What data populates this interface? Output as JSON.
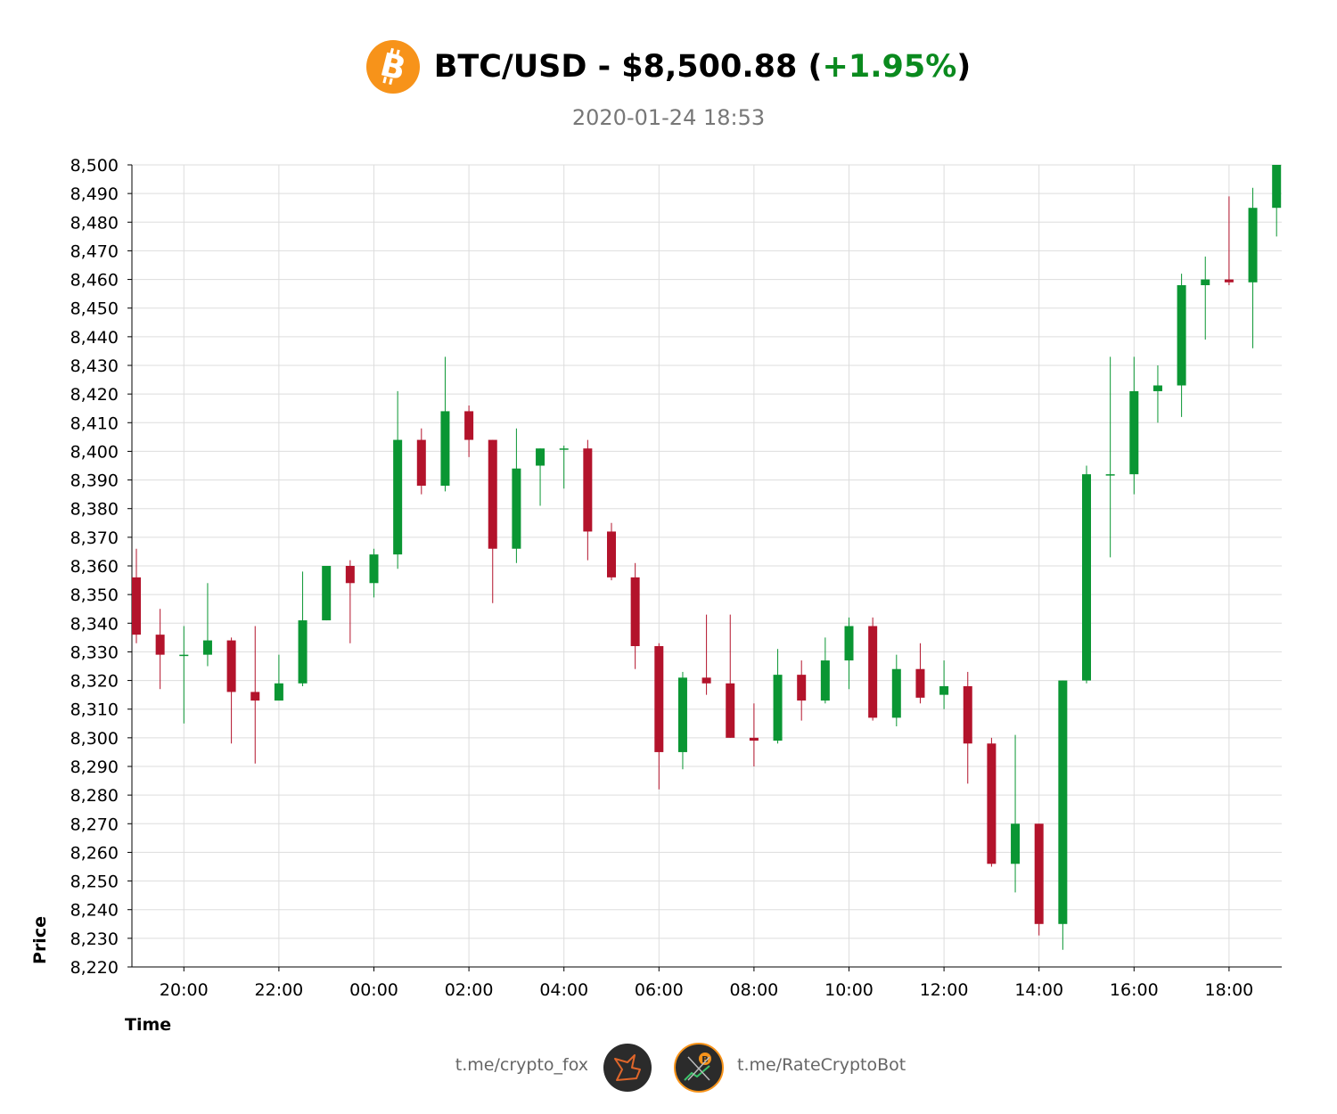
{
  "header": {
    "pair": "BTC/USD - $8,500.88 (",
    "change": "+1.95%",
    "close_paren": ")",
    "timestamp": "2020-01-24 18:53",
    "icon": "bitcoin-icon"
  },
  "colors": {
    "up": "#0a9633",
    "down": "#b3132b",
    "change_text": "#0a8a1e",
    "bitcoin_orange": "#f7931a",
    "grid": "#dddddd"
  },
  "footer": {
    "left_link": "t.me/crypto_fox",
    "right_link": "t.me/RateCryptoBot",
    "left_avatar_icon": "fox-logo-icon",
    "right_avatar_icon": "rate-crypto-bot-logo-icon"
  },
  "chart_data": {
    "type": "candlestick",
    "xlabel": "Time",
    "ylabel": "Price",
    "ylim": [
      8220,
      8500
    ],
    "y_ticks": [
      "8,220",
      "8,230",
      "8,240",
      "8,250",
      "8,260",
      "8,270",
      "8,280",
      "8,290",
      "8,300",
      "8,310",
      "8,320",
      "8,330",
      "8,340",
      "8,350",
      "8,360",
      "8,370",
      "8,380",
      "8,390",
      "8,400",
      "8,410",
      "8,420",
      "8,430",
      "8,440",
      "8,450",
      "8,460",
      "8,470",
      "8,480",
      "8,490",
      "8,500"
    ],
    "x_ticks": [
      "20:00",
      "22:00",
      "00:00",
      "02:00",
      "04:00",
      "06:00",
      "08:00",
      "10:00",
      "12:00",
      "14:00",
      "16:00",
      "18:00"
    ],
    "interval": "30min",
    "first_candle": "19:00",
    "grid": true,
    "candles": [
      {
        "t": "19:00",
        "o": 8356,
        "h": 8366,
        "l": 8333,
        "c": 8336
      },
      {
        "t": "19:30",
        "o": 8336,
        "h": 8345,
        "l": 8317,
        "c": 8329
      },
      {
        "t": "20:00",
        "o": 8329,
        "h": 8339,
        "l": 8305,
        "c": 8329
      },
      {
        "t": "20:30",
        "o": 8329,
        "h": 8354,
        "l": 8325,
        "c": 8334
      },
      {
        "t": "21:00",
        "o": 8334,
        "h": 8335,
        "l": 8298,
        "c": 8316
      },
      {
        "t": "21:30",
        "o": 8316,
        "h": 8339,
        "l": 8291,
        "c": 8313
      },
      {
        "t": "22:00",
        "o": 8313,
        "h": 8329,
        "l": 8313,
        "c": 8319
      },
      {
        "t": "22:30",
        "o": 8319,
        "h": 8358,
        "l": 8318,
        "c": 8341
      },
      {
        "t": "23:00",
        "o": 8341,
        "h": 8360,
        "l": 8341,
        "c": 8360
      },
      {
        "t": "23:30",
        "o": 8360,
        "h": 8362,
        "l": 8333,
        "c": 8354
      },
      {
        "t": "00:00",
        "o": 8354,
        "h": 8366,
        "l": 8349,
        "c": 8364
      },
      {
        "t": "00:30",
        "o": 8364,
        "h": 8421,
        "l": 8359,
        "c": 8404
      },
      {
        "t": "01:00",
        "o": 8404,
        "h": 8408,
        "l": 8385,
        "c": 8388
      },
      {
        "t": "01:30",
        "o": 8388,
        "h": 8433,
        "l": 8386,
        "c": 8414
      },
      {
        "t": "02:00",
        "o": 8414,
        "h": 8416,
        "l": 8398,
        "c": 8404
      },
      {
        "t": "02:30",
        "o": 8404,
        "h": 8404,
        "l": 8347,
        "c": 8366
      },
      {
        "t": "03:00",
        "o": 8366,
        "h": 8408,
        "l": 8361,
        "c": 8394
      },
      {
        "t": "03:30",
        "o": 8395,
        "h": 8401,
        "l": 8381,
        "c": 8401
      },
      {
        "t": "04:00",
        "o": 8401,
        "h": 8402,
        "l": 8387,
        "c": 8401
      },
      {
        "t": "04:30",
        "o": 8401,
        "h": 8404,
        "l": 8362,
        "c": 8372
      },
      {
        "t": "05:00",
        "o": 8372,
        "h": 8375,
        "l": 8355,
        "c": 8356
      },
      {
        "t": "05:30",
        "o": 8356,
        "h": 8361,
        "l": 8324,
        "c": 8332
      },
      {
        "t": "06:00",
        "o": 8332,
        "h": 8333,
        "l": 8282,
        "c": 8295
      },
      {
        "t": "06:30",
        "o": 8295,
        "h": 8323,
        "l": 8289,
        "c": 8321
      },
      {
        "t": "07:00",
        "o": 8321,
        "h": 8343,
        "l": 8315,
        "c": 8319
      },
      {
        "t": "07:30",
        "o": 8319,
        "h": 8343,
        "l": 8300,
        "c": 8300
      },
      {
        "t": "08:00",
        "o": 8300,
        "h": 8312,
        "l": 8290,
        "c": 8299
      },
      {
        "t": "08:30",
        "o": 8299,
        "h": 8331,
        "l": 8298,
        "c": 8322
      },
      {
        "t": "09:00",
        "o": 8322,
        "h": 8327,
        "l": 8306,
        "c": 8313
      },
      {
        "t": "09:30",
        "o": 8313,
        "h": 8335,
        "l": 8312,
        "c": 8327
      },
      {
        "t": "10:00",
        "o": 8327,
        "h": 8342,
        "l": 8317,
        "c": 8339
      },
      {
        "t": "10:30",
        "o": 8339,
        "h": 8342,
        "l": 8306,
        "c": 8307
      },
      {
        "t": "11:00",
        "o": 8307,
        "h": 8329,
        "l": 8304,
        "c": 8324
      },
      {
        "t": "11:30",
        "o": 8324,
        "h": 8333,
        "l": 8312,
        "c": 8314
      },
      {
        "t": "12:00",
        "o": 8315,
        "h": 8327,
        "l": 8310,
        "c": 8318
      },
      {
        "t": "12:30",
        "o": 8318,
        "h": 8323,
        "l": 8284,
        "c": 8298
      },
      {
        "t": "13:00",
        "o": 8298,
        "h": 8300,
        "l": 8255,
        "c": 8256
      },
      {
        "t": "13:30",
        "o": 8256,
        "h": 8301,
        "l": 8246,
        "c": 8270
      },
      {
        "t": "14:00",
        "o": 8270,
        "h": 8270,
        "l": 8231,
        "c": 8235
      },
      {
        "t": "14:30",
        "o": 8235,
        "h": 8320,
        "l": 8226,
        "c": 8320
      },
      {
        "t": "15:00",
        "o": 8320,
        "h": 8395,
        "l": 8319,
        "c": 8392
      },
      {
        "t": "15:30",
        "o": 8392,
        "h": 8433,
        "l": 8363,
        "c": 8392
      },
      {
        "t": "16:00",
        "o": 8392,
        "h": 8433,
        "l": 8385,
        "c": 8421
      },
      {
        "t": "16:30",
        "o": 8421,
        "h": 8430,
        "l": 8410,
        "c": 8423
      },
      {
        "t": "17:00",
        "o": 8423,
        "h": 8462,
        "l": 8412,
        "c": 8458
      },
      {
        "t": "17:30",
        "o": 8458,
        "h": 8468,
        "l": 8439,
        "c": 8460
      },
      {
        "t": "18:00",
        "o": 8460,
        "h": 8489,
        "l": 8458,
        "c": 8459
      },
      {
        "t": "18:30",
        "o": 8459,
        "h": 8492,
        "l": 8436,
        "c": 8485
      },
      {
        "t": "19:00",
        "o": 8485,
        "h": 8500,
        "l": 8475,
        "c": 8500
      }
    ]
  }
}
